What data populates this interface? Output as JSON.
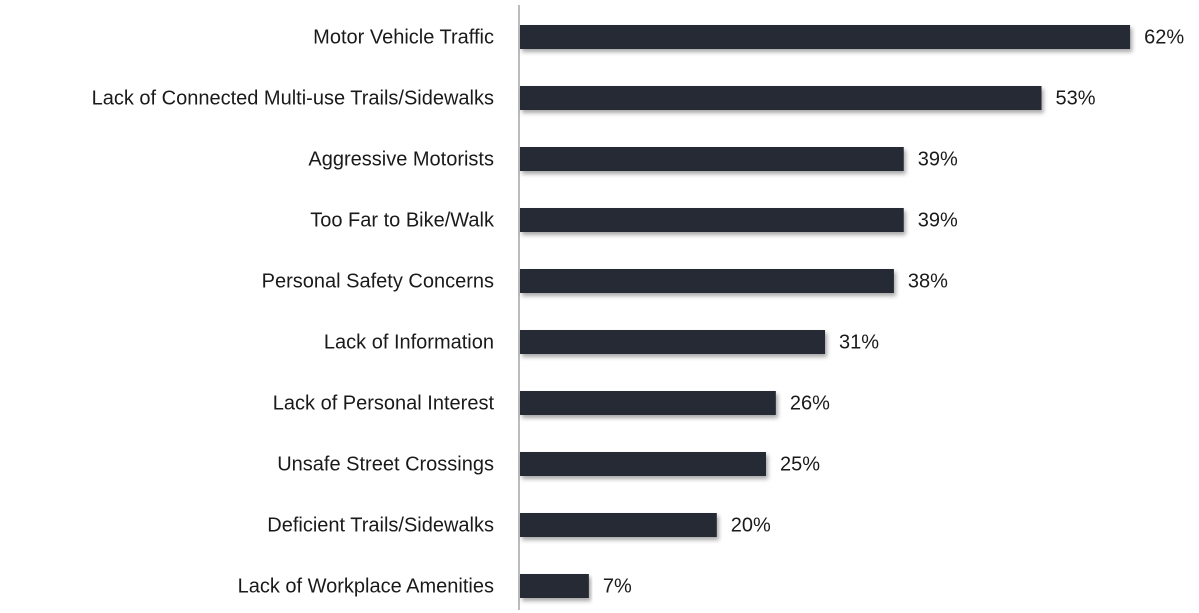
{
  "chart_data": {
    "type": "bar",
    "orientation": "horizontal",
    "categories": [
      "Motor Vehicle Traffic",
      "Lack of Connected Multi-use Trails/Sidewalks",
      "Aggressive Motorists",
      "Too Far to Bike/Walk",
      "Personal Safety Concerns",
      "Lack of Information",
      "Lack of Personal Interest",
      "Unsafe Street Crossings",
      "Deficient Trails/Sidewalks",
      "Lack of Workplace Amenities"
    ],
    "values": [
      62,
      53,
      39,
      39,
      38,
      31,
      26,
      25,
      20,
      7
    ],
    "value_labels": [
      "62%",
      "53%",
      "39%",
      "39%",
      "38%",
      "31%",
      "26%",
      "25%",
      "20%",
      "7%"
    ],
    "color": "#262a35"
  }
}
